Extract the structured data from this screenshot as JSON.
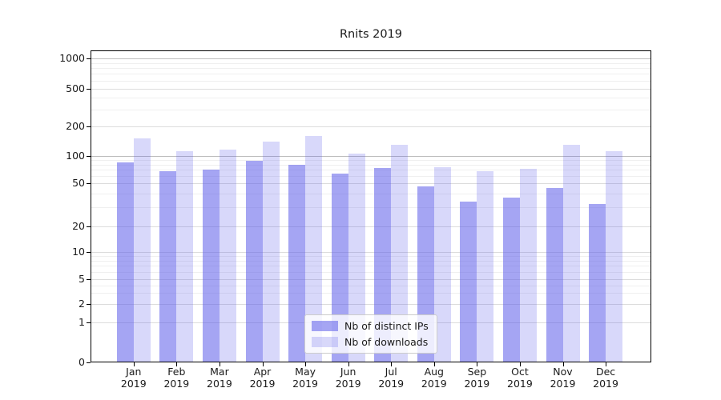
{
  "title": "Rnits 2019",
  "chart_data": {
    "type": "bar",
    "title": "Rnits 2019",
    "year": "2019",
    "months": [
      "Jan",
      "Feb",
      "Mar",
      "Apr",
      "May",
      "Jun",
      "Jul",
      "Aug",
      "Sep",
      "Oct",
      "Nov",
      "Dec"
    ],
    "categories": [
      "Jan 2019",
      "Feb 2019",
      "Mar 2019",
      "Apr 2019",
      "May 2019",
      "Jun 2019",
      "Jul 2019",
      "Aug 2019",
      "Sep 2019",
      "Oct 2019",
      "Nov 2019",
      "Dec 2019"
    ],
    "series": [
      {
        "name": "Nb of distinct IPs",
        "color": "#5b5be9",
        "opacity": 0.55,
        "values": [
          85,
          68,
          70,
          88,
          80,
          63,
          73,
          47,
          34,
          37,
          45,
          32
        ]
      },
      {
        "name": "Nb of downloads",
        "color": "#5b5be9",
        "opacity": 0.24,
        "values": [
          150,
          110,
          115,
          140,
          160,
          105,
          130,
          75,
          68,
          72,
          130,
          110
        ]
      }
    ],
    "yscale": "symlog",
    "yticks": [
      0,
      1,
      2,
      5,
      10,
      20,
      50,
      100,
      200,
      500,
      1000
    ],
    "ylim": [
      0,
      1200
    ],
    "xlabel": "",
    "ylabel": "",
    "grid": "both",
    "legend_position": "lower center"
  },
  "colors": {
    "background": "#ffffff",
    "axis": "#000000",
    "text": "#1a1a1a",
    "grid_decade": "#bdbdbd",
    "grid_major": "#dcdcdc",
    "grid_minor": "#efefef"
  }
}
